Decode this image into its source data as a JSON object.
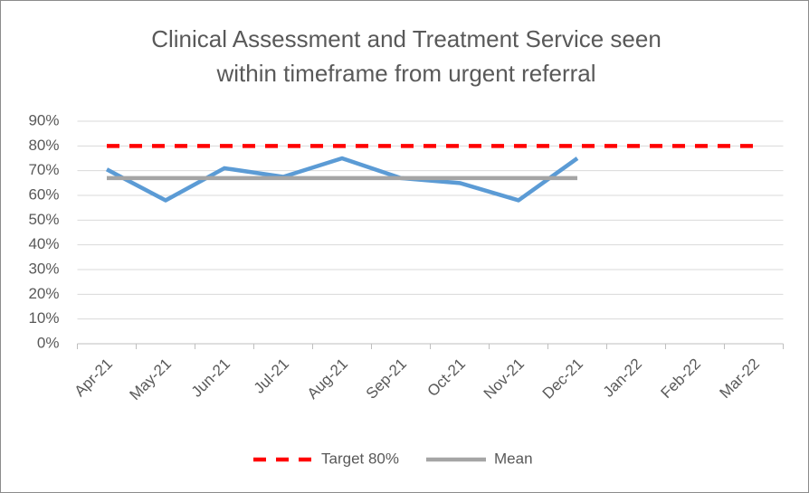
{
  "chart_data": {
    "type": "line",
    "title": [
      "Clinical Assessment and Treatment Service seen",
      "within timeframe from urgent referral"
    ],
    "categories": [
      "Apr-21",
      "May-21",
      "Jun-21",
      "Jul-21",
      "Aug-21",
      "Sep-21",
      "Oct-21",
      "Nov-21",
      "Dec-21",
      "Jan-22",
      "Feb-22",
      "Mar-22"
    ],
    "series": [
      {
        "color": "#5b9bd5",
        "values": [
          70.5,
          58,
          71,
          67.5,
          75,
          67,
          65,
          58,
          75,
          null,
          null,
          null
        ]
      },
      {
        "name": "Target 80%",
        "color": "#ff0000",
        "dashed": true,
        "values": [
          80,
          80,
          80,
          80,
          80,
          80,
          80,
          80,
          80,
          80,
          80,
          80
        ]
      },
      {
        "name": "Mean",
        "color": "#a5a5a5",
        "values": [
          67,
          67,
          67,
          67,
          67,
          67,
          67,
          67,
          67,
          null,
          null,
          null
        ]
      }
    ],
    "ylim": [
      0,
      90
    ],
    "yticks": [
      {
        "value": 0,
        "label": "0%"
      },
      {
        "value": 10,
        "label": "10%"
      },
      {
        "value": 20,
        "label": "20%"
      },
      {
        "value": 30,
        "label": "30%"
      },
      {
        "value": 40,
        "label": "40%"
      },
      {
        "value": 50,
        "label": "50%"
      },
      {
        "value": 60,
        "label": "60%"
      },
      {
        "value": 70,
        "label": "70%"
      },
      {
        "value": 80,
        "label": "80%"
      },
      {
        "value": 90,
        "label": "90%"
      }
    ],
    "grid": true,
    "legend": "bottom"
  }
}
